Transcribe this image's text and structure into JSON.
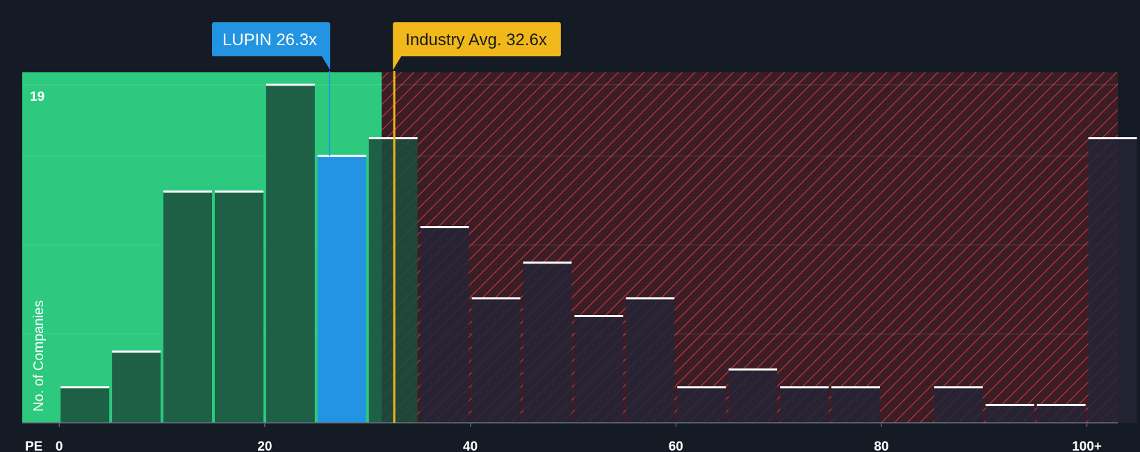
{
  "chart_data": {
    "type": "bar",
    "xlabel": "PE",
    "ylabel": "No. of Companies",
    "x_ticks": [
      0,
      20,
      40,
      60,
      80
    ],
    "x_tick_last_label": "100+",
    "x_range": [
      -3.6,
      103
    ],
    "bin_width": 5,
    "ylim": [
      0,
      19.7
    ],
    "y_max_label": "19",
    "grid": true,
    "bins": [
      {
        "start": 0,
        "value": 2
      },
      {
        "start": 5,
        "value": 4
      },
      {
        "start": 10,
        "value": 13
      },
      {
        "start": 15,
        "value": 13
      },
      {
        "start": 20,
        "value": 19
      },
      {
        "start": 25,
        "value": 15
      },
      {
        "start": 30,
        "value": 16
      },
      {
        "start": 35,
        "value": 11
      },
      {
        "start": 40,
        "value": 7
      },
      {
        "start": 45,
        "value": 9
      },
      {
        "start": 50,
        "value": 6
      },
      {
        "start": 55,
        "value": 7
      },
      {
        "start": 60,
        "value": 2
      },
      {
        "start": 65,
        "value": 3
      },
      {
        "start": 70,
        "value": 2
      },
      {
        "start": 75,
        "value": 2
      },
      {
        "start": 80,
        "value": 0
      },
      {
        "start": 85,
        "value": 2
      },
      {
        "start": 90,
        "value": 1
      },
      {
        "start": 95,
        "value": 1
      },
      {
        "start": 100,
        "value": 16
      }
    ],
    "undervalued_zone_end": 31,
    "company": {
      "name": "LUPIN",
      "value": 26.3,
      "label": "LUPIN 26.3x",
      "bin_index": 5
    },
    "industry": {
      "name": "Industry Avg.",
      "value": 32.6,
      "label": "Industry Avg. 32.6x"
    }
  },
  "colors": {
    "background": "#151b24",
    "green_zone": "#2cc97e",
    "green_bar": "#1b4d3c",
    "company_bar": "#2394e1",
    "red_zone": "#3a1d25",
    "red_hatch": "#d03a3f",
    "red_bar": "#262536",
    "industry_marker": "#f0b81a"
  }
}
